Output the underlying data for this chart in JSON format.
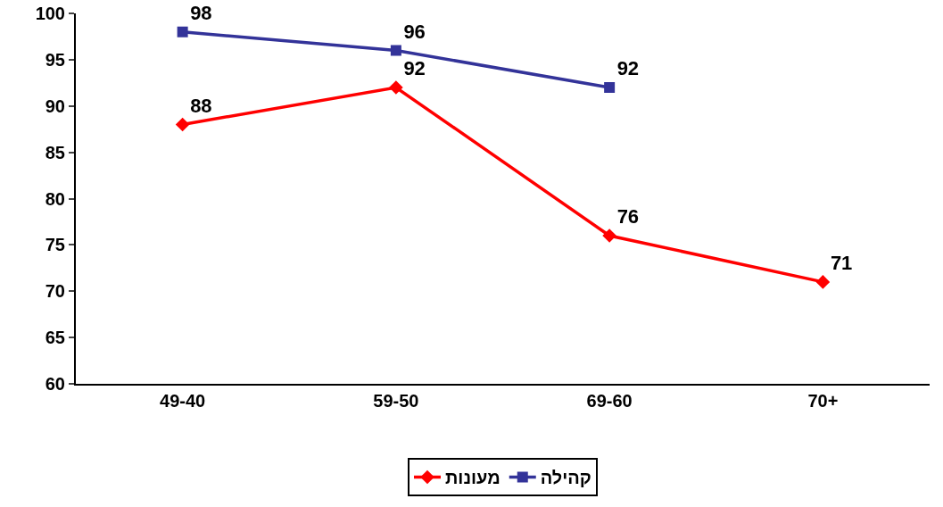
{
  "chart_data": {
    "type": "line",
    "categories": [
      "49-40",
      "59-50",
      "69-60",
      "70+"
    ],
    "series": [
      {
        "name": "מעונות",
        "color": "#ff0000",
        "marker": "diamond",
        "values": [
          88,
          92,
          76,
          71
        ]
      },
      {
        "name": "קהילה",
        "color": "#333399",
        "marker": "square",
        "values": [
          98,
          96,
          92,
          null
        ]
      }
    ],
    "ylim": [
      60,
      100
    ],
    "yticks": [
      60,
      65,
      70,
      75,
      80,
      85,
      90,
      95,
      100
    ],
    "grid": false,
    "legend": "bottom",
    "data_labels": true,
    "line_style": "solid"
  }
}
